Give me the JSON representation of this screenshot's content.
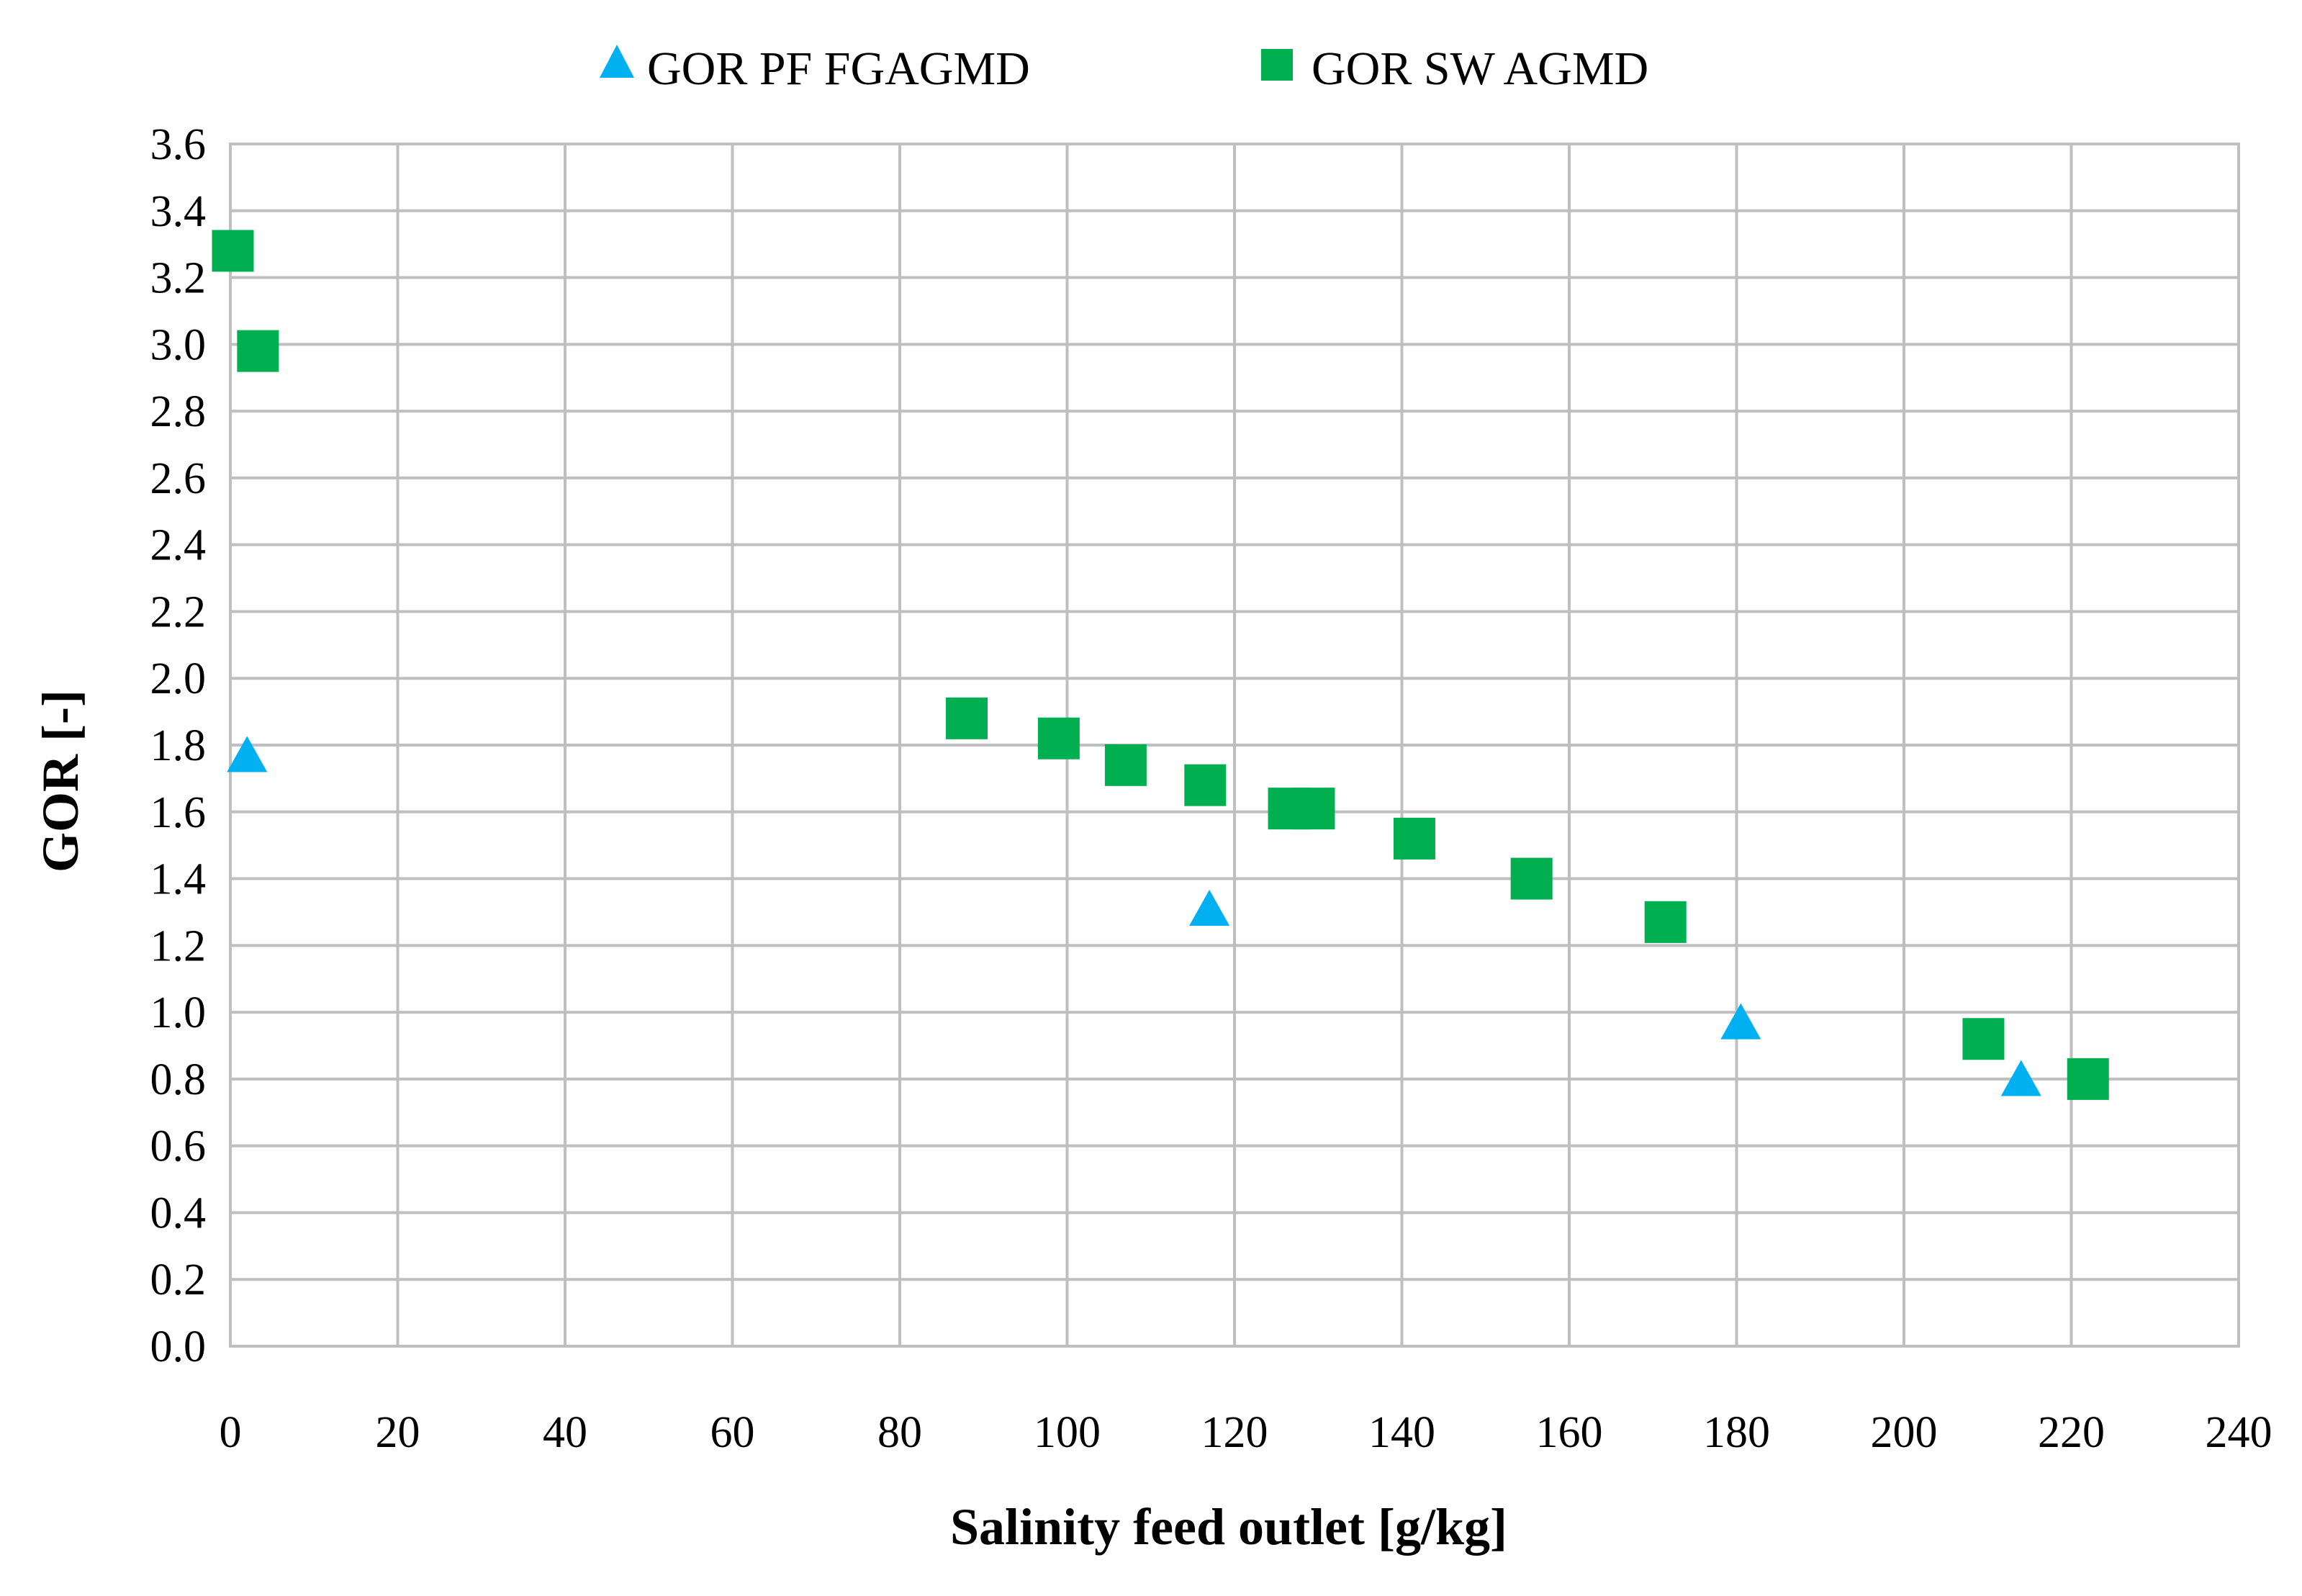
{
  "colors": {
    "triangle_series": "#00b0f0",
    "square_series": "#00b050",
    "grid": "#bfbfbf",
    "text": "#000000"
  },
  "chart_data": {
    "type": "scatter",
    "title": "",
    "xlabel": "Salinity  feed outlet [g/kg]",
    "ylabel": "GOR [-]",
    "xlim": [
      0,
      240
    ],
    "ylim": [
      0,
      3.6
    ],
    "x_ticks": [
      "0",
      "20",
      "40",
      "60",
      "80",
      "100",
      "120",
      "140",
      "160",
      "180",
      "200",
      "220",
      "240"
    ],
    "y_ticks": [
      "0.0",
      "0.2",
      "0.4",
      "0.6",
      "0.8",
      "1.0",
      "1.2",
      "1.4",
      "1.6",
      "1.8",
      "2.0",
      "2.2",
      "2.4",
      "2.6",
      "2.8",
      "3.0",
      "3.2",
      "3.4",
      "3.6"
    ],
    "grid": true,
    "legend_position": "top",
    "series": [
      {
        "name": "GOR PF FGAGMD",
        "marker": "triangle",
        "color": "#00b0f0",
        "x": [
          2,
          117,
          180.5,
          214
        ],
        "y": [
          1.76,
          1.3,
          0.96,
          0.79
        ]
      },
      {
        "name": "GOR SW AGMD",
        "marker": "square",
        "color": "#00b050",
        "x": [
          0.3,
          3.3,
          88,
          99,
          107,
          116.5,
          126.5,
          129.5,
          141.5,
          155.5,
          171.5,
          209.5,
          222
        ],
        "y": [
          3.28,
          2.98,
          1.88,
          1.82,
          1.74,
          1.68,
          1.61,
          1.61,
          1.52,
          1.4,
          1.27,
          0.92,
          0.8
        ]
      }
    ]
  }
}
